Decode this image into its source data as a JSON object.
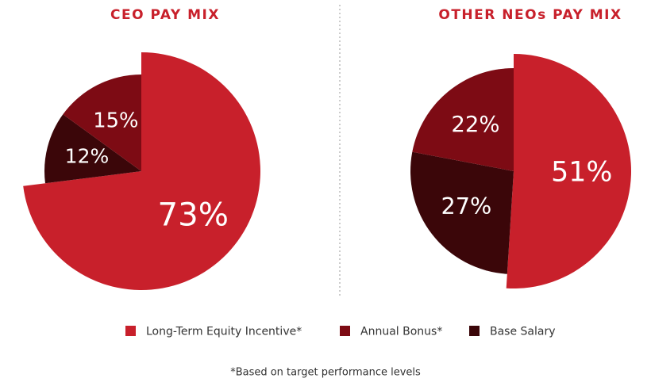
{
  "chart_data": [
    {
      "type": "pie",
      "title": "CEO PAY MIX",
      "categories": [
        "Long-Term Equity Incentive*",
        "Base Salary",
        "Annual Bonus*"
      ],
      "values": [
        73,
        12,
        15
      ],
      "value_labels": [
        "73%",
        "12%",
        "15%"
      ],
      "colors": [
        "#c8202b",
        "#3b0609",
        "#7d0b14"
      ]
    },
    {
      "type": "pie",
      "title": "OTHER NEOs PAY MIX",
      "categories": [
        "Long-Term Equity Incentive*",
        "Base Salary",
        "Annual Bonus*"
      ],
      "values": [
        51,
        27,
        22
      ],
      "value_labels": [
        "51%",
        "27%",
        "22%"
      ],
      "colors": [
        "#c8202b",
        "#3b0609",
        "#7d0b14"
      ]
    }
  ],
  "footnote": "*Based on target performance levels"
}
